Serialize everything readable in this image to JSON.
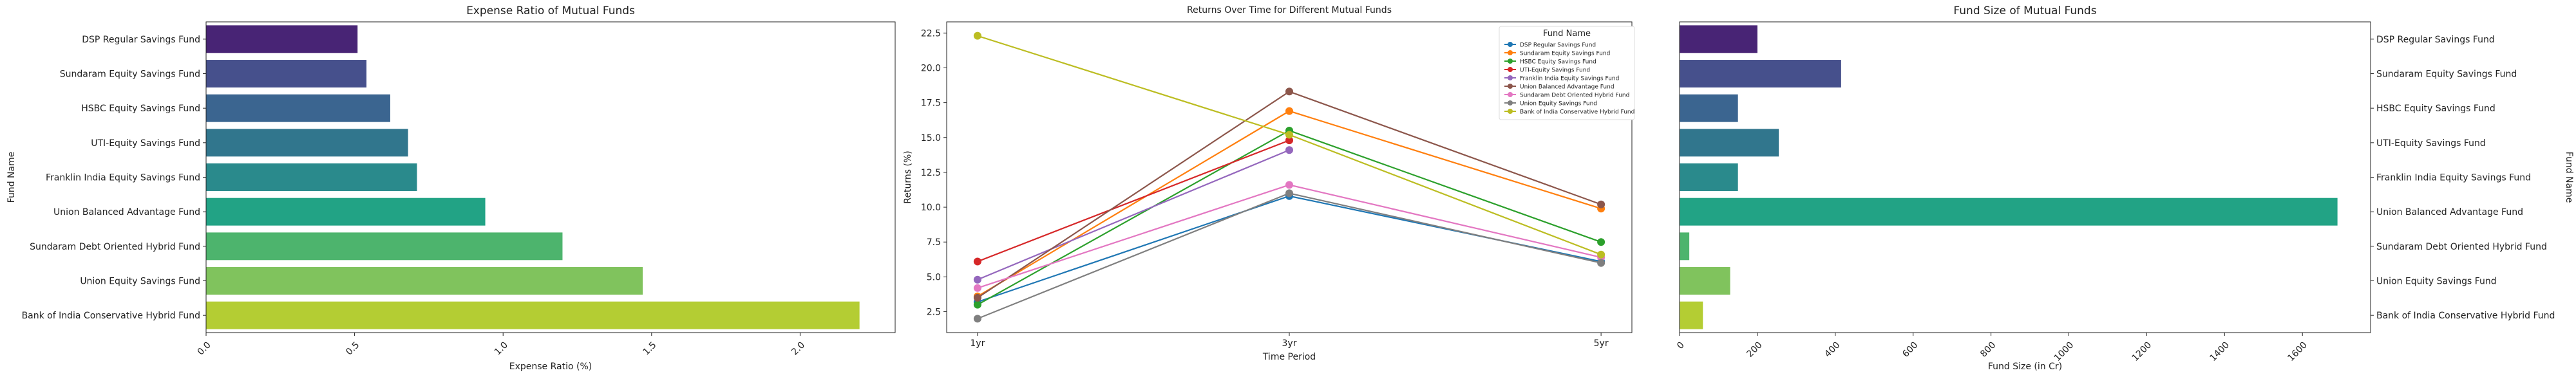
{
  "chart_data": [
    {
      "type": "bar",
      "orientation": "horizontal",
      "title": "Expense Ratio of Mutual Funds",
      "xlabel": "Expense Ratio (%)",
      "ylabel": "Fund Name",
      "categories": [
        "DSP Regular Savings Fund",
        "Sundaram Equity Savings Fund",
        "HSBC Equity Savings Fund",
        "UTI-Equity Savings Fund",
        "Franklin India Equity Savings Fund",
        "Union Balanced Advantage Fund",
        "Sundaram Debt Oriented Hybrid Fund",
        "Union Equity Savings Fund",
        "Bank of India Conservative Hybrid Fund"
      ],
      "values": [
        0.51,
        0.54,
        0.62,
        0.68,
        0.71,
        0.94,
        1.2,
        1.47,
        2.2
      ],
      "xlim": [
        0,
        2.32
      ],
      "xticks": [
        "0.0",
        "0.5",
        "1.0",
        "1.5",
        "2.0"
      ],
      "colors": [
        "#482475",
        "#46508c",
        "#3b6590",
        "#31768d",
        "#2a8a8c",
        "#22a385",
        "#4db46d",
        "#80c35d",
        "#b4cd33"
      ],
      "grid": false
    },
    {
      "type": "line",
      "title": "Returns Over Time for Different Mutual Funds",
      "xlabel": "Time Period",
      "ylabel": "Returns (%)",
      "categories": [
        "1yr",
        "3yr",
        "5yr"
      ],
      "ylim": [
        1.0,
        23.3
      ],
      "yticks": [
        "2.5",
        "5.0",
        "7.5",
        "10.0",
        "12.5",
        "15.0",
        "17.5",
        "20.0",
        "22.5"
      ],
      "legend_title": "Fund Name",
      "legend_position": "top-right",
      "series": [
        {
          "name": "DSP Regular Savings Fund",
          "color": "#1f77b4",
          "values": [
            3.2,
            10.8,
            6.1
          ]
        },
        {
          "name": "Sundaram Equity Savings Fund",
          "color": "#ff7f0e",
          "values": [
            3.6,
            16.9,
            9.9
          ]
        },
        {
          "name": "HSBC Equity Savings Fund",
          "color": "#2ca02c",
          "values": [
            3.0,
            15.5,
            7.5
          ]
        },
        {
          "name": "UTI-Equity Savings Fund",
          "color": "#d62728",
          "values": [
            6.1,
            14.8,
            null
          ]
        },
        {
          "name": "Franklin India Equity Savings Fund",
          "color": "#9467bd",
          "values": [
            4.8,
            14.1,
            null
          ]
        },
        {
          "name": "Union Balanced Advantage Fund",
          "color": "#8c564b",
          "values": [
            3.5,
            18.3,
            10.2
          ]
        },
        {
          "name": "Sundaram Debt Oriented Hybrid Fund",
          "color": "#e377c2",
          "values": [
            4.2,
            11.6,
            6.4
          ]
        },
        {
          "name": "Union Equity Savings Fund",
          "color": "#7f7f7f",
          "values": [
            2.0,
            11.0,
            6.0
          ]
        },
        {
          "name": "Bank of India Conservative Hybrid Fund",
          "color": "#bcbd22",
          "values": [
            22.3,
            15.2,
            6.6
          ]
        }
      ]
    },
    {
      "type": "bar",
      "orientation": "horizontal",
      "title": "Fund Size of Mutual Funds",
      "xlabel": "Fund Size (in Cr)",
      "ylabel": "Fund Name",
      "categories": [
        "DSP Regular Savings Fund",
        "Sundaram Equity Savings Fund",
        "HSBC Equity Savings Fund",
        "UTI-Equity Savings Fund",
        "Franklin India Equity Savings Fund",
        "Union Balanced Advantage Fund",
        "Sundaram Debt Oriented Hybrid Fund",
        "Union Equity Savings Fund",
        "Bank of India Conservative Hybrid Fund"
      ],
      "values": [
        200,
        415,
        150,
        255,
        150,
        1690,
        25,
        130,
        60
      ],
      "xlim": [
        0,
        1775
      ],
      "xticks": [
        "0",
        "200",
        "400",
        "600",
        "800",
        "1000",
        "1200",
        "1400",
        "1600"
      ],
      "colors": [
        "#482475",
        "#46508c",
        "#3b6590",
        "#31768d",
        "#2a8a8c",
        "#22a385",
        "#4db46d",
        "#80c35d",
        "#b4cd33"
      ],
      "grid": false
    }
  ]
}
